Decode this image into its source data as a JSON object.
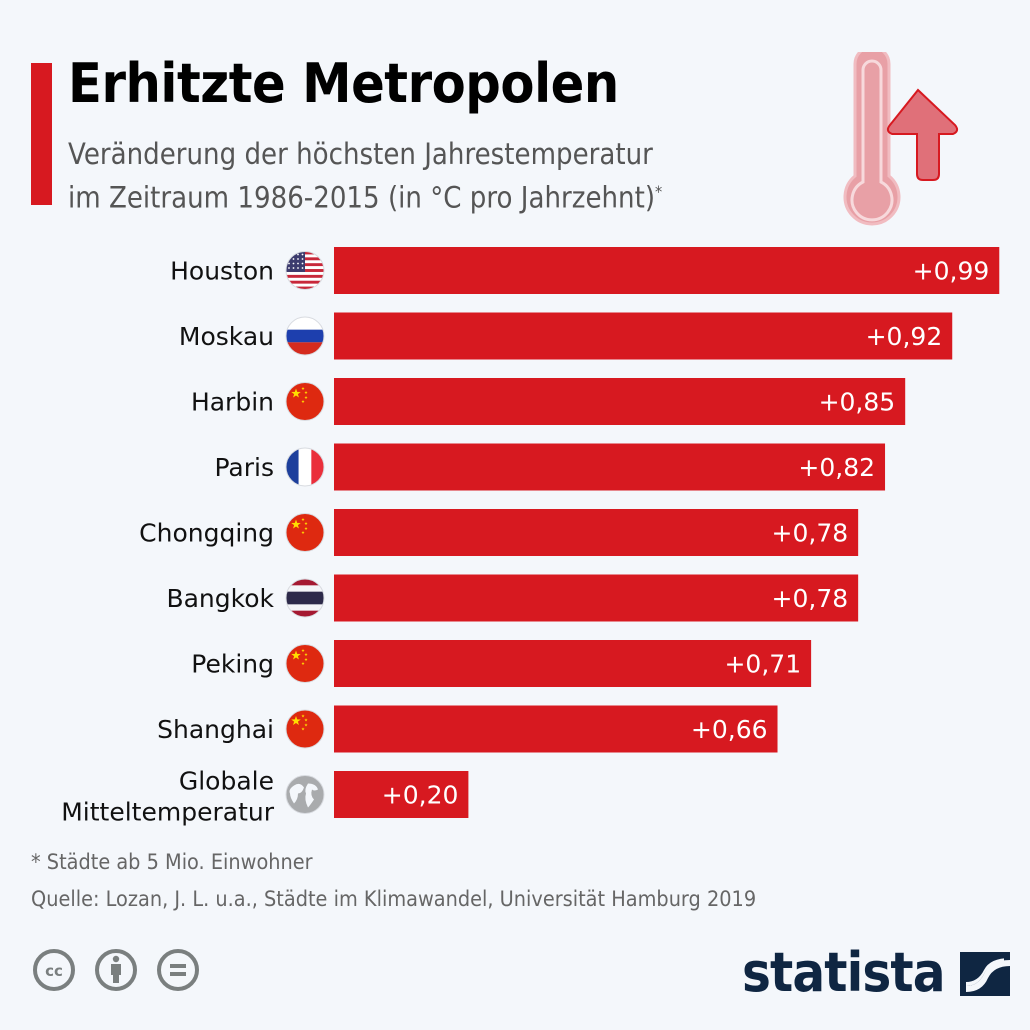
{
  "header": {
    "title": "Erhitzte Metropolen",
    "subtitle_line1": "Veränderung der höchsten Jahrestemperatur",
    "subtitle_line2": "im Zeitraum 1986-2015 (in °C pro Jahrzehnt)",
    "subtitle_marker": "*",
    "icon": "thermometer-rising-icon"
  },
  "colors": {
    "accent": "#d71920",
    "bar": "#d71920",
    "bar_label": "#ffffff",
    "category_label": "#111111",
    "background": "#f4f7fb",
    "brand": "#0f2642",
    "footnote": "#666666",
    "icon_pink": "#e8a0a6"
  },
  "chart_data": {
    "type": "bar",
    "orientation": "horizontal",
    "title": "Erhitzte Metropolen",
    "subtitle": "Veränderung der höchsten Jahrestemperatur im Zeitraum 1986-2015 (in °C pro Jahrzehnt)*",
    "xlabel": "",
    "ylabel": "",
    "xlim": [
      0,
      1.0
    ],
    "grid": false,
    "legend": "none",
    "categories": [
      "Houston",
      "Moskau",
      "Harbin",
      "Paris",
      "Chongqing",
      "Bangkok",
      "Peking",
      "Shanghai",
      "Globale Mitteltemperatur"
    ],
    "category_lines": [
      [
        "Houston"
      ],
      [
        "Moskau"
      ],
      [
        "Harbin"
      ],
      [
        "Paris"
      ],
      [
        "Chongqing"
      ],
      [
        "Bangkok"
      ],
      [
        "Peking"
      ],
      [
        "Shanghai"
      ],
      [
        "Globale",
        "Mitteltemperatur"
      ]
    ],
    "flags": [
      "us-flag-icon",
      "russia-flag-icon",
      "china-flag-icon",
      "france-flag-icon",
      "china-flag-icon",
      "thailand-flag-icon",
      "china-flag-icon",
      "china-flag-icon",
      "globe-icon"
    ],
    "values": [
      0.99,
      0.92,
      0.85,
      0.82,
      0.78,
      0.78,
      0.71,
      0.66,
      0.2
    ],
    "data_labels": [
      "+0,99",
      "+0,92",
      "+0,85",
      "+0,82",
      "+0,78",
      "+0,78",
      "+0,71",
      "+0,66",
      "+0,20"
    ]
  },
  "footer": {
    "note": "* Städte ab 5 Mio. Einwohner",
    "source": "Quelle: Lozan, J. L. u.a., Städte im Klimawandel, Universität Hamburg 2019",
    "license_icons": [
      "cc-icon",
      "attribution-icon",
      "no-derivatives-icon"
    ],
    "brand": "statista"
  }
}
